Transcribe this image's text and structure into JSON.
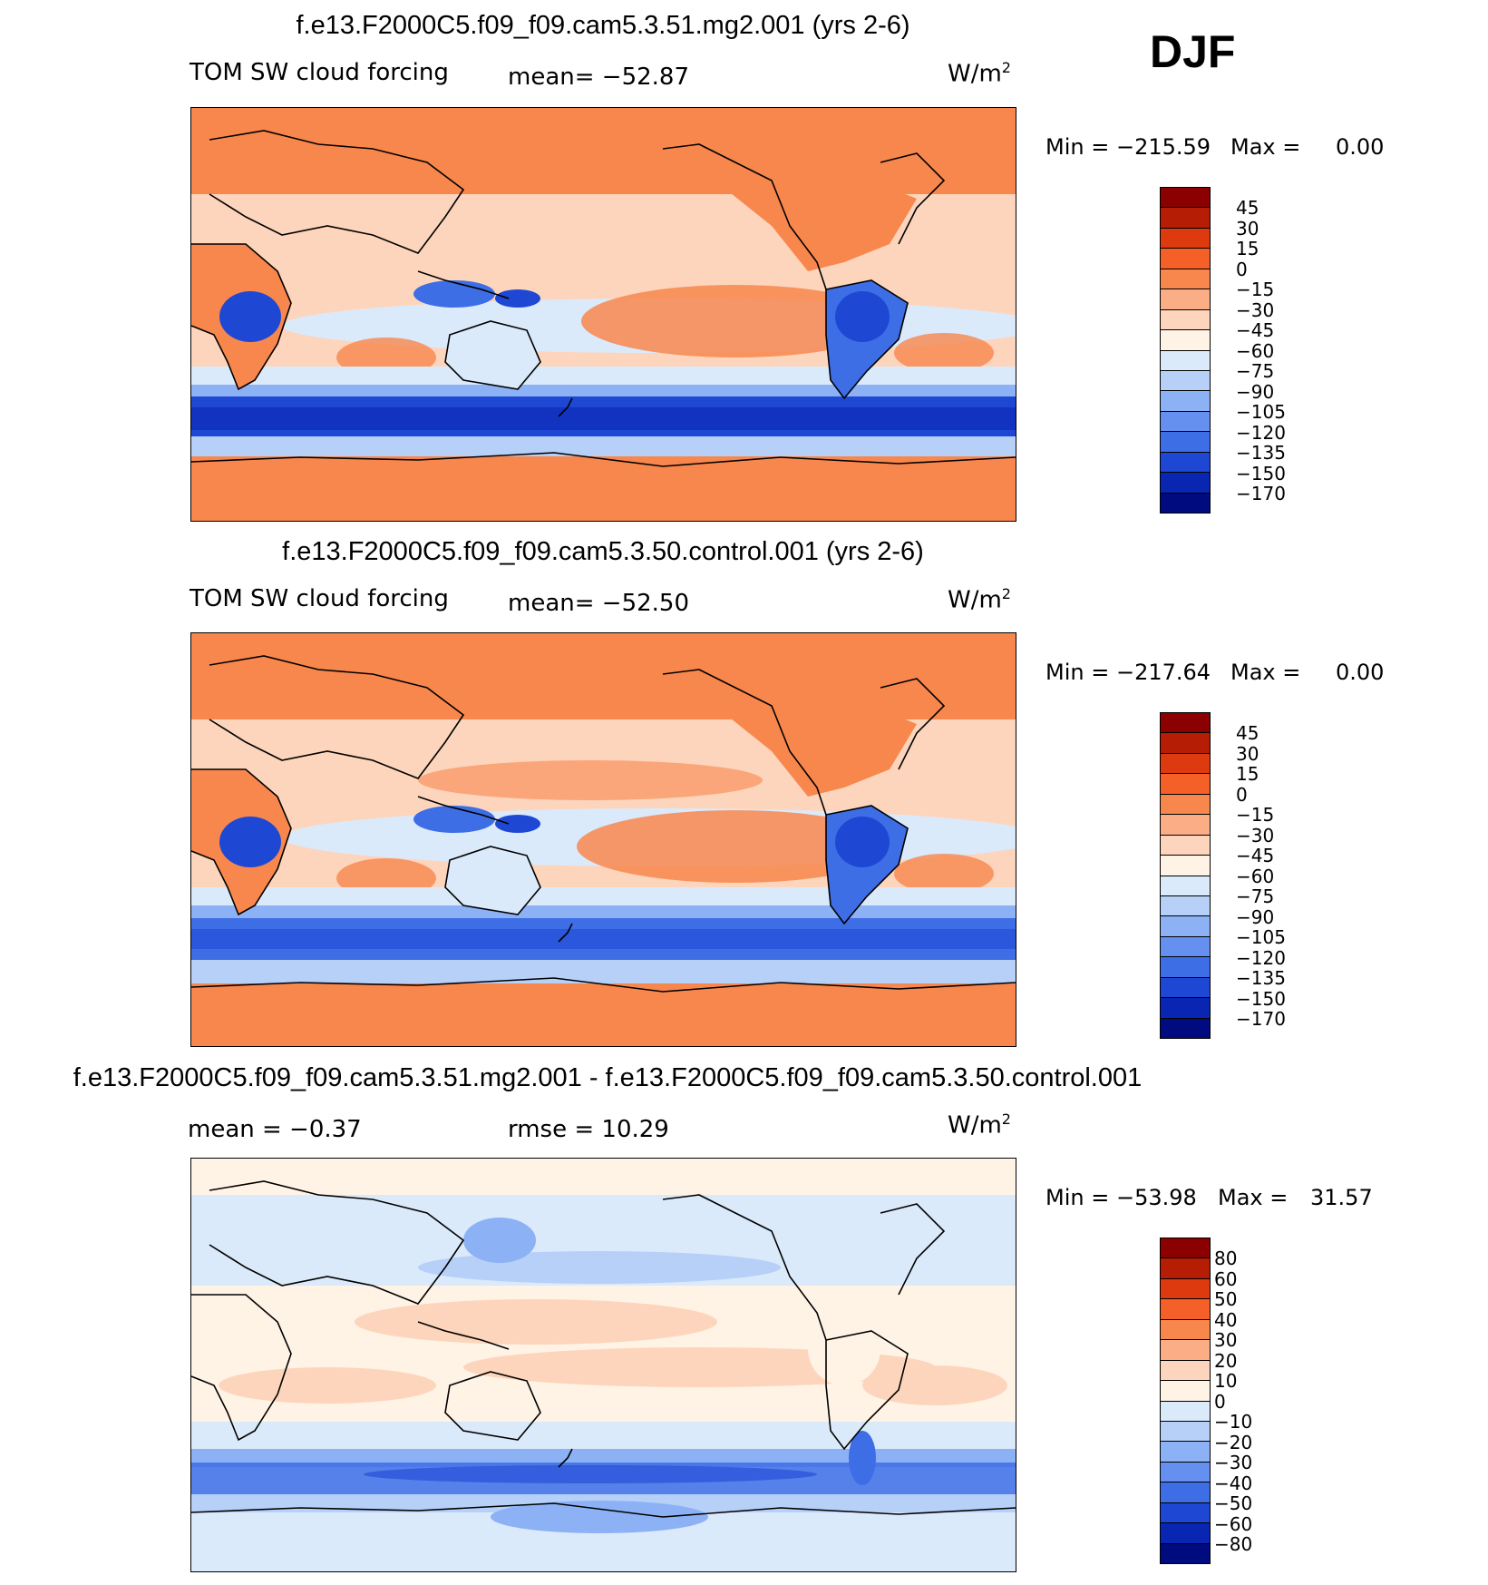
{
  "season": "DJF",
  "panels": [
    {
      "title": "f.e13.F2000C5.f09_f09.cam5.3.51.mg2.001 (yrs 2-6)",
      "left_label": "TOM SW cloud forcing",
      "center_label": "mean= −52.87",
      "units": "W/m",
      "units_sup": "2",
      "min_label": "Min = −215.59",
      "max_label": "Max =",
      "max_value": "0.00",
      "palette": "field",
      "colorbar_ticks": [
        "45",
        "30",
        "15",
        "0",
        "−15",
        "−30",
        "−45",
        "−60",
        "−75",
        "−90",
        "−105",
        "−120",
        "−135",
        "−150",
        "−170"
      ]
    },
    {
      "title": "f.e13.F2000C5.f09_f09.cam5.3.50.control.001 (yrs 2-6)",
      "left_label": "TOM SW cloud forcing",
      "center_label": "mean= −52.50",
      "units": "W/m",
      "units_sup": "2",
      "min_label": "Min = −217.64",
      "max_label": "Max =",
      "max_value": "0.00",
      "palette": "field",
      "colorbar_ticks": [
        "45",
        "30",
        "15",
        "0",
        "−15",
        "−30",
        "−45",
        "−60",
        "−75",
        "−90",
        "−105",
        "−120",
        "−135",
        "−150",
        "−170"
      ]
    },
    {
      "title": "f.e13.F2000C5.f09_f09.cam5.3.51.mg2.001 - f.e13.F2000C5.f09_f09.cam5.3.50.control.001",
      "left_label": "mean =   −0.37",
      "center_label": "rmse =   10.29",
      "units": "W/m",
      "units_sup": "2",
      "min_label": "Min = −53.98",
      "max_label": "Max =",
      "max_value": "31.57",
      "palette": "diff",
      "colorbar_ticks": [
        "80",
        "60",
        "50",
        "40",
        "30",
        "20",
        "10",
        "0",
        "−10",
        "−20",
        "−30",
        "−40",
        "−50",
        "−60",
        "−80"
      ]
    }
  ],
  "palettes": {
    "field": [
      "#8b0000",
      "#b61d05",
      "#dd3b0f",
      "#f55f28",
      "#f8874e",
      "#fbae86",
      "#fdd5bc",
      "#fff3e6",
      "#dbeafb",
      "#b6d0f8",
      "#8db1f5",
      "#6690f0",
      "#3e6ee6",
      "#1e48d4",
      "#0826b2",
      "#000b80"
    ],
    "diff": [
      "#8b0000",
      "#b61d05",
      "#dd3b0f",
      "#f55f28",
      "#f8874e",
      "#fbae86",
      "#fdd5bc",
      "#fff3e6",
      "#dbeafb",
      "#b6d0f8",
      "#8db1f5",
      "#6690f0",
      "#3e6ee6",
      "#1e48d4",
      "#0826b2",
      "#000b80"
    ]
  }
}
